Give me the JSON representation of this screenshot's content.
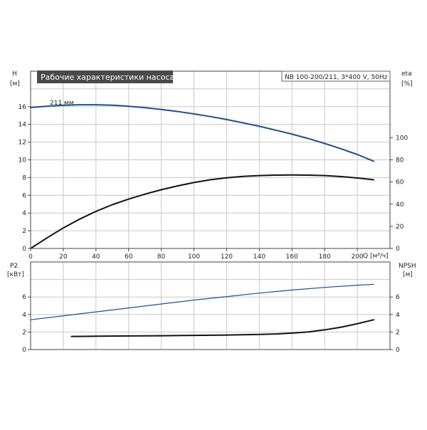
{
  "chart_data": [
    {
      "type": "line",
      "panel": "top",
      "title": "Рабочие характеристики насоса",
      "model_label": "NB 100-200/211, 3*400 V, 50Hz",
      "xlabel": "Q [м³/ч]",
      "xlim": [
        0,
        220
      ],
      "x_ticks": [
        0,
        20,
        40,
        60,
        80,
        100,
        120,
        140,
        160,
        180,
        200
      ],
      "left_axis": {
        "label": "H",
        "unit": "[м]",
        "lim": [
          0,
          20
        ],
        "ticks": [
          0,
          2,
          4,
          6,
          8,
          10,
          12,
          14,
          16
        ]
      },
      "right_axis": {
        "label": "eta",
        "unit": "[%]",
        "lim": [
          0,
          160
        ],
        "ticks": [
          0,
          20,
          40,
          60,
          80,
          100
        ]
      },
      "grid": true,
      "series": [
        {
          "axis": "left",
          "color": "#1f4f8a",
          "annotation": "211 мм",
          "x": [
            0,
            10,
            20,
            30,
            40,
            50,
            60,
            70,
            80,
            90,
            100,
            110,
            120,
            130,
            140,
            150,
            160,
            170,
            180,
            190,
            200,
            210
          ],
          "y": [
            15.9,
            16.05,
            16.15,
            16.22,
            16.22,
            16.17,
            16.05,
            15.88,
            15.68,
            15.45,
            15.18,
            14.88,
            14.55,
            14.18,
            13.78,
            13.35,
            12.9,
            12.4,
            11.85,
            11.25,
            10.6,
            9.85
          ]
        },
        {
          "axis": "right",
          "color": "#111111",
          "x": [
            0,
            10,
            20,
            30,
            40,
            50,
            60,
            70,
            80,
            90,
            100,
            110,
            120,
            130,
            140,
            150,
            160,
            170,
            180,
            190,
            200,
            210
          ],
          "y": [
            0,
            9.5,
            18.5,
            26.5,
            33.5,
            39.5,
            44.5,
            49,
            53,
            56.5,
            59.5,
            62,
            63.8,
            65,
            65.8,
            66.2,
            66.3,
            66.2,
            65.8,
            64.9,
            63.6,
            62
          ]
        }
      ]
    },
    {
      "type": "line",
      "panel": "bottom",
      "xlim": [
        0,
        220
      ],
      "left_axis": {
        "label": "P2",
        "unit": "[кВт]",
        "lim": [
          0,
          10
        ],
        "ticks": [
          0,
          2,
          4,
          6
        ]
      },
      "right_axis": {
        "label": "NPSH",
        "unit": "[м]",
        "lim": [
          0,
          10
        ],
        "ticks": [
          0,
          2,
          4,
          6
        ]
      },
      "grid": true,
      "series": [
        {
          "axis": "left",
          "color": "#1f4f8a",
          "x": [
            0,
            20,
            40,
            60,
            80,
            100,
            120,
            140,
            160,
            180,
            200,
            210
          ],
          "y": [
            3.4,
            3.85,
            4.3,
            4.75,
            5.2,
            5.65,
            6.05,
            6.45,
            6.8,
            7.1,
            7.35,
            7.45
          ]
        },
        {
          "axis": "right",
          "color": "#111111",
          "x": [
            25,
            40,
            60,
            80,
            100,
            120,
            140,
            150,
            160,
            170,
            180,
            190,
            200,
            210
          ],
          "y": [
            1.5,
            1.52,
            1.55,
            1.58,
            1.62,
            1.66,
            1.72,
            1.78,
            1.88,
            2.02,
            2.25,
            2.55,
            2.95,
            3.4
          ]
        }
      ]
    }
  ]
}
